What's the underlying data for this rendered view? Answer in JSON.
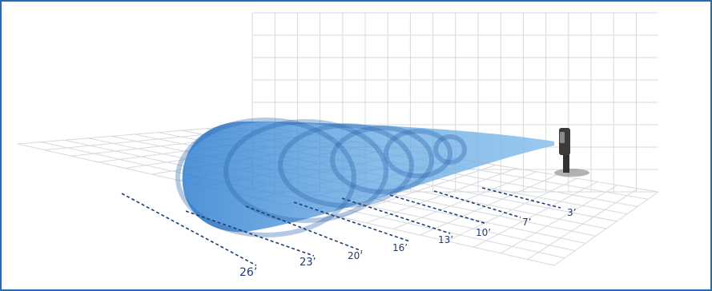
{
  "diagram": {
    "distance_labels": [
      "3’",
      "7’",
      "10’",
      "13’",
      "16’",
      "20’",
      "23’",
      "26’"
    ],
    "colors": {
      "frame": "#1f6fb6",
      "grid": "#d7d9de",
      "dash": "#1d3c78",
      "beam": "#3f8fd6",
      "sensor": "#2b2b2b"
    }
  }
}
